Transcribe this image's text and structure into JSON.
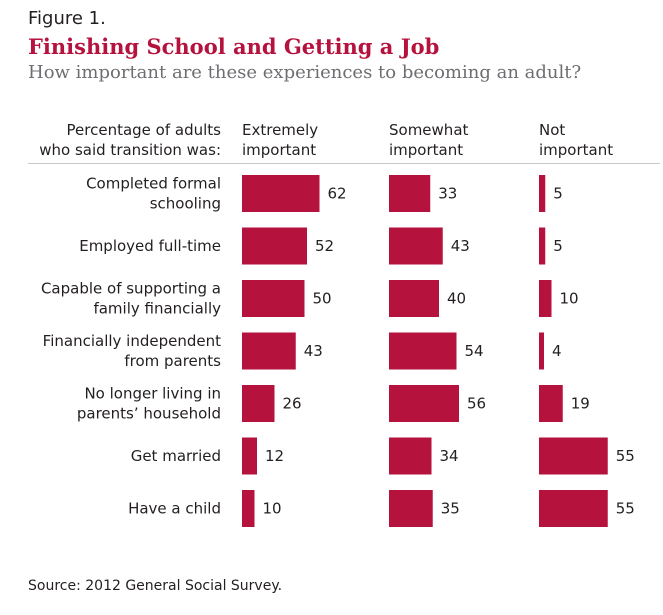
{
  "figure_label": "Figure 1.",
  "title": "Finishing School and Getting a Job",
  "subtitle": "How important are these experiences to becoming an adult?",
  "row_header": "Percentage of adults\nwho said transition was:",
  "column_headers": [
    "Extremely\nimportant",
    "Somewhat\nimportant",
    "Not\nimportant"
  ],
  "source": "Source: 2012 General Social Survey.",
  "colors": {
    "bar": "#b5123e",
    "title": "#b5123e",
    "subtitle": "#6d6e71",
    "text": "#231f20"
  },
  "chart_data": {
    "type": "bar",
    "orientation": "horizontal",
    "categories": [
      "Completed formal\nschooling",
      "Employed full-time",
      "Capable of supporting a\nfamily financially",
      "Financially independent\nfrom parents",
      "No longer living in\nparents’ household",
      "Get married",
      "Have a child"
    ],
    "series": [
      {
        "name": "Extremely important",
        "values": [
          62,
          52,
          50,
          43,
          26,
          12,
          10
        ]
      },
      {
        "name": "Somewhat important",
        "values": [
          33,
          43,
          40,
          54,
          56,
          34,
          35
        ]
      },
      {
        "name": "Not important",
        "values": [
          5,
          5,
          10,
          4,
          19,
          55,
          55
        ]
      }
    ],
    "xlim": [
      0,
      100
    ],
    "grid": false,
    "legend": "none"
  }
}
